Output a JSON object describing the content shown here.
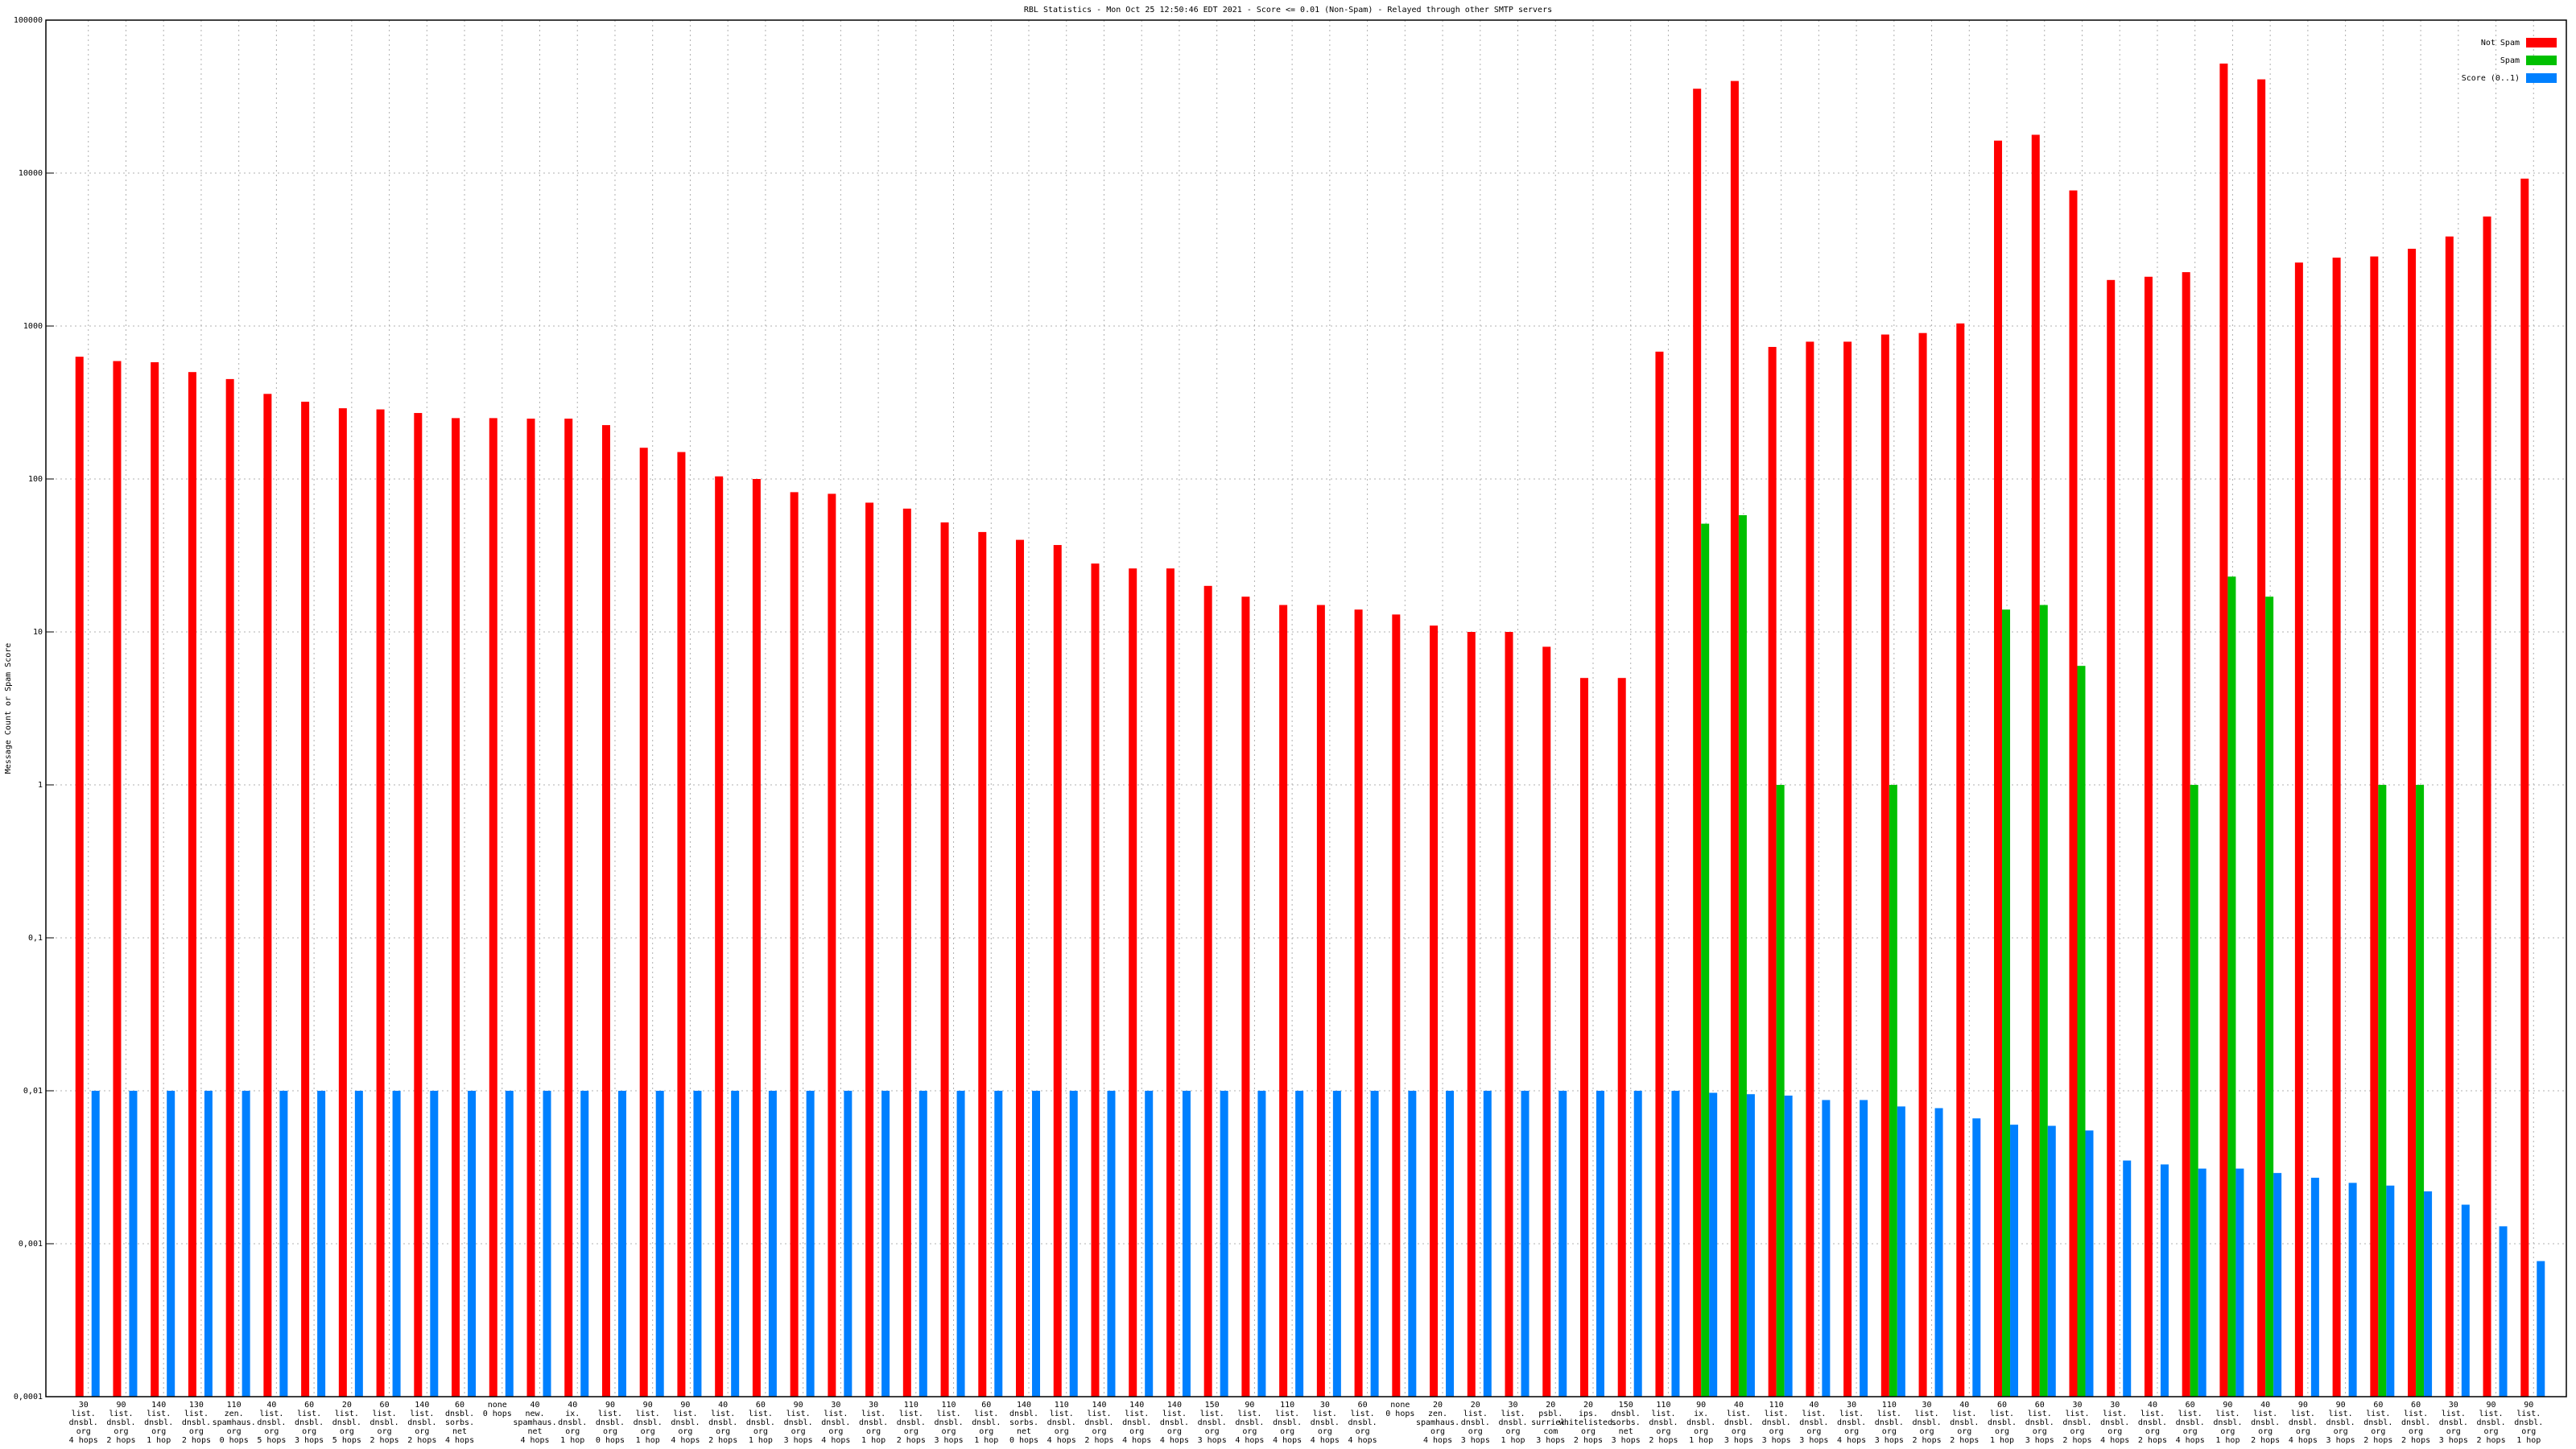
{
  "chart_data": {
    "type": "bar",
    "title": "RBL Statistics - Mon Oct 25 12:50:46 EDT 2021 - Score <= 0.01 (Non-Spam) - Relayed through other SMTP servers",
    "ylabel": "Message Count or Spam Score",
    "log_scale": true,
    "grid": true,
    "legend": "top-right",
    "ylim": [
      0.0001,
      100000
    ],
    "yticks": [
      {
        "value": 0.0001,
        "label": "0,0001"
      },
      {
        "value": 0.001,
        "label": "0,001"
      },
      {
        "value": 0.01,
        "label": "0,01"
      },
      {
        "value": 0.1,
        "label": "0,1"
      },
      1,
      10,
      100,
      1000,
      10000,
      100000
    ],
    "categories": [
      [
        "30",
        "list.",
        "dnsbl.",
        "org",
        "4 hops"
      ],
      [
        "90",
        "list.",
        "dnsbl.",
        "org",
        "2 hops"
      ],
      [
        "140",
        "list.",
        "dnsbl.",
        "org",
        "1 hop"
      ],
      [
        "130",
        "list.",
        "dnsbl.",
        "org",
        "2 hops"
      ],
      [
        "110",
        "zen.",
        "spamhaus.",
        "org",
        "0 hops"
      ],
      [
        "40",
        "list.",
        "dnsbl.",
        "org",
        "5 hops"
      ],
      [
        "60",
        "list.",
        "dnsbl.",
        "org",
        "3 hops"
      ],
      [
        "20",
        "list.",
        "dnsbl.",
        "org",
        "5 hops"
      ],
      [
        "60",
        "list.",
        "dnsbl.",
        "org",
        "2 hops"
      ],
      [
        "140",
        "list.",
        "dnsbl.",
        "org",
        "2 hops"
      ],
      [
        "60",
        "dnsbl.",
        "sorbs.",
        "net",
        "4 hops"
      ],
      [
        "none",
        "0 hops"
      ],
      [
        "40",
        "new.",
        "spamhaus.",
        "net",
        "4 hops"
      ],
      [
        "40",
        "ix.",
        "dnsbl.",
        "org",
        "1 hop"
      ],
      [
        "90",
        "list.",
        "dnsbl.",
        "org",
        "0 hops"
      ],
      [
        "90",
        "list.",
        "dnsbl.",
        "org",
        "1 hop"
      ],
      [
        "90",
        "list.",
        "dnsbl.",
        "org",
        "4 hops"
      ],
      [
        "40",
        "list.",
        "dnsbl.",
        "org",
        "2 hops"
      ],
      [
        "60",
        "list.",
        "dnsbl.",
        "org",
        "1 hop"
      ],
      [
        "90",
        "list.",
        "dnsbl.",
        "org",
        "3 hops"
      ],
      [
        "30",
        "list.",
        "dnsbl.",
        "org",
        "4 hops"
      ],
      [
        "30",
        "list.",
        "dnsbl.",
        "org",
        "1 hop"
      ],
      [
        "110",
        "list.",
        "dnsbl.",
        "org",
        "2 hops"
      ],
      [
        "110",
        "list.",
        "dnsbl.",
        "org",
        "3 hops"
      ],
      [
        "60",
        "list.",
        "dnsbl.",
        "org",
        "1 hop"
      ],
      [
        "140",
        "dnsbl.",
        "sorbs.",
        "net",
        "0 hops"
      ],
      [
        "110",
        "list.",
        "dnsbl.",
        "org",
        "4 hops"
      ],
      [
        "140",
        "list.",
        "dnsbl.",
        "org",
        "2 hops"
      ],
      [
        "140",
        "list.",
        "dnsbl.",
        "org",
        "4 hops"
      ],
      [
        "140",
        "list.",
        "dnsbl.",
        "org",
        "4 hops"
      ],
      [
        "150",
        "list.",
        "dnsbl.",
        "org",
        "3 hops"
      ],
      [
        "90",
        "list.",
        "dnsbl.",
        "org",
        "4 hops"
      ],
      [
        "110",
        "list.",
        "dnsbl.",
        "org",
        "4 hops"
      ],
      [
        "30",
        "list.",
        "dnsbl.",
        "org",
        "4 hops"
      ],
      [
        "60",
        "list.",
        "dnsbl.",
        "org",
        "4 hops"
      ],
      [
        "none",
        "0 hops"
      ],
      [
        "20",
        "zen.",
        "spamhaus.",
        "org",
        "4 hops"
      ],
      [
        "20",
        "list.",
        "dnsbl.",
        "org",
        "3 hops"
      ],
      [
        "30",
        "list.",
        "dnsbl.",
        "org",
        "1 hop"
      ],
      [
        "20",
        "psbl.",
        "surriel.",
        "com",
        "3 hops"
      ],
      [
        "20",
        "ips.",
        "whitelisted.",
        "org",
        "2 hops"
      ],
      [
        "150",
        "dnsbl.",
        "sorbs.",
        "net",
        "3 hops"
      ],
      [
        "110",
        "list.",
        "dnsbl.",
        "org",
        "2 hops"
      ],
      [
        "90",
        "ix.",
        "dnsbl.",
        "org",
        "1 hop"
      ],
      [
        "40",
        "list.",
        "dnsbl.",
        "org",
        "3 hops"
      ],
      [
        "110",
        "list.",
        "dnsbl.",
        "org",
        "3 hops"
      ],
      [
        "40",
        "list.",
        "dnsbl.",
        "org",
        "3 hops"
      ],
      [
        "30",
        "list.",
        "dnsbl.",
        "org",
        "4 hops"
      ],
      [
        "110",
        "list.",
        "dnsbl.",
        "org",
        "3 hops"
      ],
      [
        "30",
        "list.",
        "dnsbl.",
        "org",
        "2 hops"
      ],
      [
        "40",
        "list.",
        "dnsbl.",
        "org",
        "2 hops"
      ],
      [
        "60",
        "list.",
        "dnsbl.",
        "org",
        "1 hop"
      ],
      [
        "60",
        "list.",
        "dnsbl.",
        "org",
        "3 hops"
      ],
      [
        "30",
        "list.",
        "dnsbl.",
        "org",
        "2 hops"
      ],
      [
        "30",
        "list.",
        "dnsbl.",
        "org",
        "4 hops"
      ],
      [
        "40",
        "list.",
        "dnsbl.",
        "org",
        "2 hops"
      ],
      [
        "60",
        "list.",
        "dnsbl.",
        "org",
        "4 hops"
      ],
      [
        "90",
        "list.",
        "dnsbl.",
        "org",
        "1 hop"
      ],
      [
        "40",
        "list.",
        "dnsbl.",
        "org",
        "2 hops"
      ],
      [
        "90",
        "list.",
        "dnsbl.",
        "org",
        "4 hops"
      ],
      [
        "90",
        "list.",
        "dnsbl.",
        "org",
        "3 hops"
      ],
      [
        "60",
        "list.",
        "dnsbl.",
        "org",
        "2 hops"
      ],
      [
        "60",
        "list.",
        "dnsbl.",
        "org",
        "2 hops"
      ],
      [
        "30",
        "list.",
        "dnsbl.",
        "org",
        "3 hops"
      ],
      [
        "90",
        "list.",
        "dnsbl.",
        "org",
        "2 hops"
      ],
      [
        "90",
        "list.",
        "dnsbl.",
        "org",
        "1 hop"
      ]
    ],
    "series": [
      {
        "name": "Not Spam",
        "color": "#ff0000",
        "values": [
          630,
          590,
          580,
          500,
          450,
          360,
          320,
          290,
          285,
          270,
          250,
          250,
          248,
          248,
          225,
          160,
          150,
          104,
          100,
          82,
          80,
          70,
          64,
          52,
          45,
          40,
          37,
          28,
          26,
          26,
          20,
          17,
          15,
          15,
          14,
          13,
          11,
          10,
          10,
          8,
          5,
          5,
          680,
          35600,
          40000,
          730,
          790,
          790,
          880,
          900,
          1040,
          16300,
          17800,
          7700,
          2000,
          2100,
          2250,
          52000,
          41000,
          2600,
          2800,
          2850,
          3200,
          3850,
          5200,
          9200
        ]
      },
      {
        "name": "Spam",
        "color": "#00c000",
        "values": [
          null,
          null,
          null,
          null,
          null,
          null,
          null,
          null,
          null,
          null,
          null,
          null,
          null,
          null,
          null,
          null,
          null,
          null,
          null,
          null,
          null,
          null,
          null,
          null,
          null,
          null,
          null,
          null,
          null,
          null,
          null,
          null,
          null,
          null,
          null,
          null,
          null,
          null,
          null,
          null,
          null,
          null,
          null,
          51,
          58,
          1,
          null,
          null,
          1,
          null,
          null,
          14,
          15,
          6,
          null,
          null,
          1,
          23,
          17,
          null,
          null,
          1,
          1,
          null,
          null,
          null
        ]
      },
      {
        "name": "Score (0..1)",
        "color": "#0080ff",
        "values": [
          0.01,
          0.01,
          0.01,
          0.01,
          0.01,
          0.01,
          0.01,
          0.01,
          0.01,
          0.01,
          0.01,
          0.01,
          0.01,
          0.01,
          0.01,
          0.01,
          0.01,
          0.01,
          0.01,
          0.01,
          0.01,
          0.01,
          0.01,
          0.01,
          0.01,
          0.01,
          0.01,
          0.01,
          0.01,
          0.01,
          0.01,
          0.01,
          0.01,
          0.01,
          0.01,
          0.01,
          0.01,
          0.01,
          0.01,
          0.01,
          0.01,
          0.01,
          0.01,
          0.0097,
          0.0095,
          0.0093,
          0.0087,
          0.0087,
          0.0079,
          0.0077,
          0.0066,
          0.006,
          0.0059,
          0.0055,
          0.0035,
          0.0033,
          0.0031,
          0.0031,
          0.0029,
          0.0027,
          0.0025,
          0.0024,
          0.0022,
          0.0018,
          0.0013,
          0.00077
        ]
      }
    ]
  }
}
